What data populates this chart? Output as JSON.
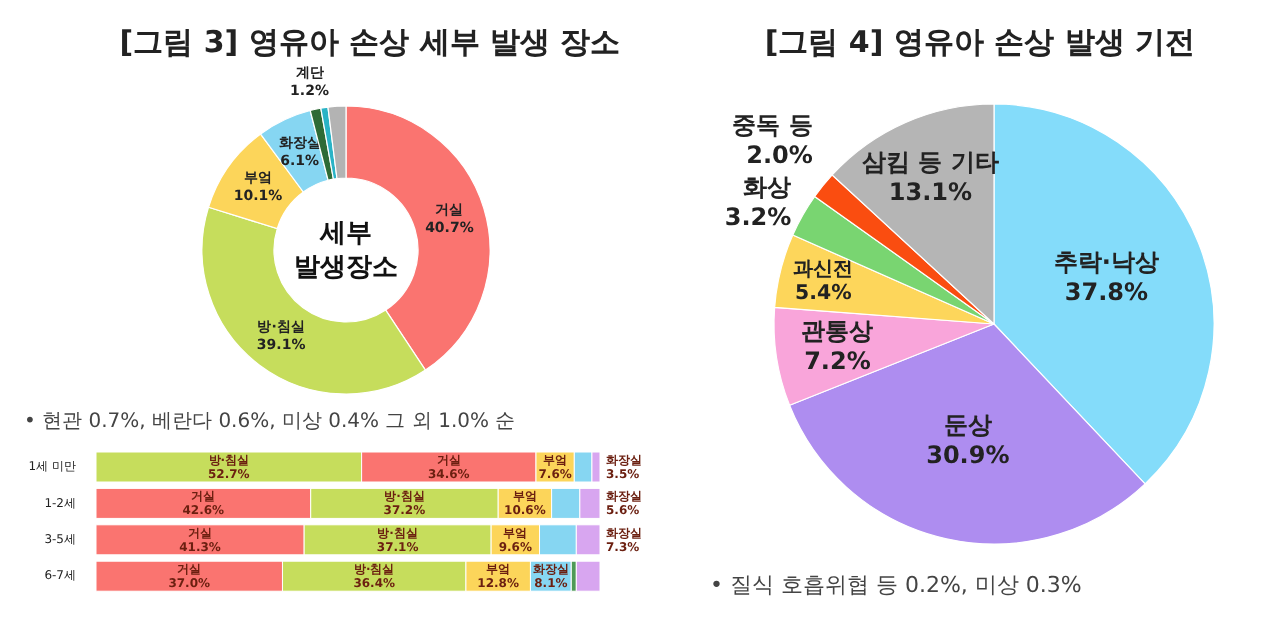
{
  "chart_data": [
    {
      "type": "donut",
      "title": "[그림 3] 영유아 손상 세부 발생 장소",
      "categories": [
        "거실",
        "방·침실",
        "부엌",
        "화장실",
        "계단",
        null,
        null
      ],
      "values": [
        40.7,
        39.1,
        10.1,
        6.1,
        1.2,
        0.8,
        2.0
      ],
      "colors": [
        "#fa7470",
        "#c6dd5c",
        "#fcd55a",
        "#86d6f2",
        "#2e6b36",
        "#2ab3c6",
        "#b3b3b3"
      ],
      "value_labels": [
        "40.7%",
        "39.1%",
        "10.1%",
        "6.1%",
        "1.2%",
        null,
        null
      ],
      "annotations": [
        "세부 발생장소",
        "• 현관 0.7%, 베란다 0.6%, 미상 0.4% 그 외 1.0% 순"
      ]
    },
    {
      "type": "bar",
      "orientation": "horizontal",
      "stacked": true,
      "categories": [
        "1세 미만",
        "1-2세",
        "3-5세",
        "6-7세"
      ],
      "xlim": [
        0,
        100
      ],
      "series": [
        {
          "colors": [
            "#c6dd5c",
            "#fa7470",
            "#fa7470",
            "#fa7470"
          ],
          "values": [
            52.7,
            42.6,
            41.3,
            37.0
          ],
          "value_labels": [
            "방·침실\n52.7%",
            "거실\n42.6%",
            "거실\n41.3%",
            "거실\n37.0%"
          ]
        },
        {
          "colors": [
            "#fa7470",
            "#c6dd5c",
            "#c6dd5c",
            "#c6dd5c"
          ],
          "values": [
            34.6,
            37.2,
            37.1,
            36.4
          ],
          "value_labels": [
            "거실\n34.6%",
            "방·침실\n37.2%",
            "방·침실\n37.1%",
            "방·침실\n36.4%"
          ]
        },
        {
          "colors": [
            "#fcd55a",
            "#fcd55a",
            "#fcd55a",
            "#fcd55a"
          ],
          "values": [
            7.6,
            10.6,
            9.6,
            12.8
          ],
          "value_labels": [
            "부엌\n7.6%",
            "부엌\n10.6%",
            "부엌\n9.6%",
            "부엌\n12.8%"
          ]
        },
        {
          "colors": [
            "#86d6f2",
            "#86d6f2",
            "#86d6f2",
            "#86d6f2"
          ],
          "values": [
            3.5,
            5.6,
            7.3,
            8.1
          ],
          "value_labels": [
            "화장실\n3.5%",
            "화장실\n5.6%",
            "화장실\n7.3%",
            "화장실\n8.1%"
          ]
        },
        {
          "colors": [
            "#d8a6f0",
            "#d8a6f0",
            "#d8a6f0",
            "#4f9a57"
          ],
          "values": [
            1.6,
            4.0,
            4.7,
            1.0
          ],
          "value_labels": [
            null,
            null,
            null,
            null
          ]
        },
        {
          "colors": [
            "#d8a6f0",
            "#d8a6f0",
            "#d8a6f0",
            "#d8a6f0"
          ],
          "values": [
            null,
            null,
            null,
            4.7
          ],
          "value_labels": [
            null,
            null,
            null,
            null
          ]
        }
      ]
    },
    {
      "type": "pie",
      "title": "[그림 4] 영유아 손상 발생 기전",
      "categories": [
        "추락·낙상",
        "둔상",
        "관통상",
        "과신전",
        "화상",
        "중독 등",
        "삼킴 등 기타"
      ],
      "values": [
        37.8,
        30.9,
        7.2,
        5.4,
        3.2,
        2.0,
        13.1
      ],
      "colors": [
        "#84dcfa",
        "#ae8df0",
        "#f9a5da",
        "#fdd65b",
        "#79d571",
        "#fa4d10",
        "#b5b5b5"
      ],
      "value_labels": [
        "37.8%",
        "30.9%",
        "7.2%",
        "5.4%",
        "3.2%",
        "2.0%",
        "13.1%"
      ],
      "annotations": [
        "• 질식 호흡위협 등 0.2%, 미상 0.3%"
      ]
    }
  ]
}
